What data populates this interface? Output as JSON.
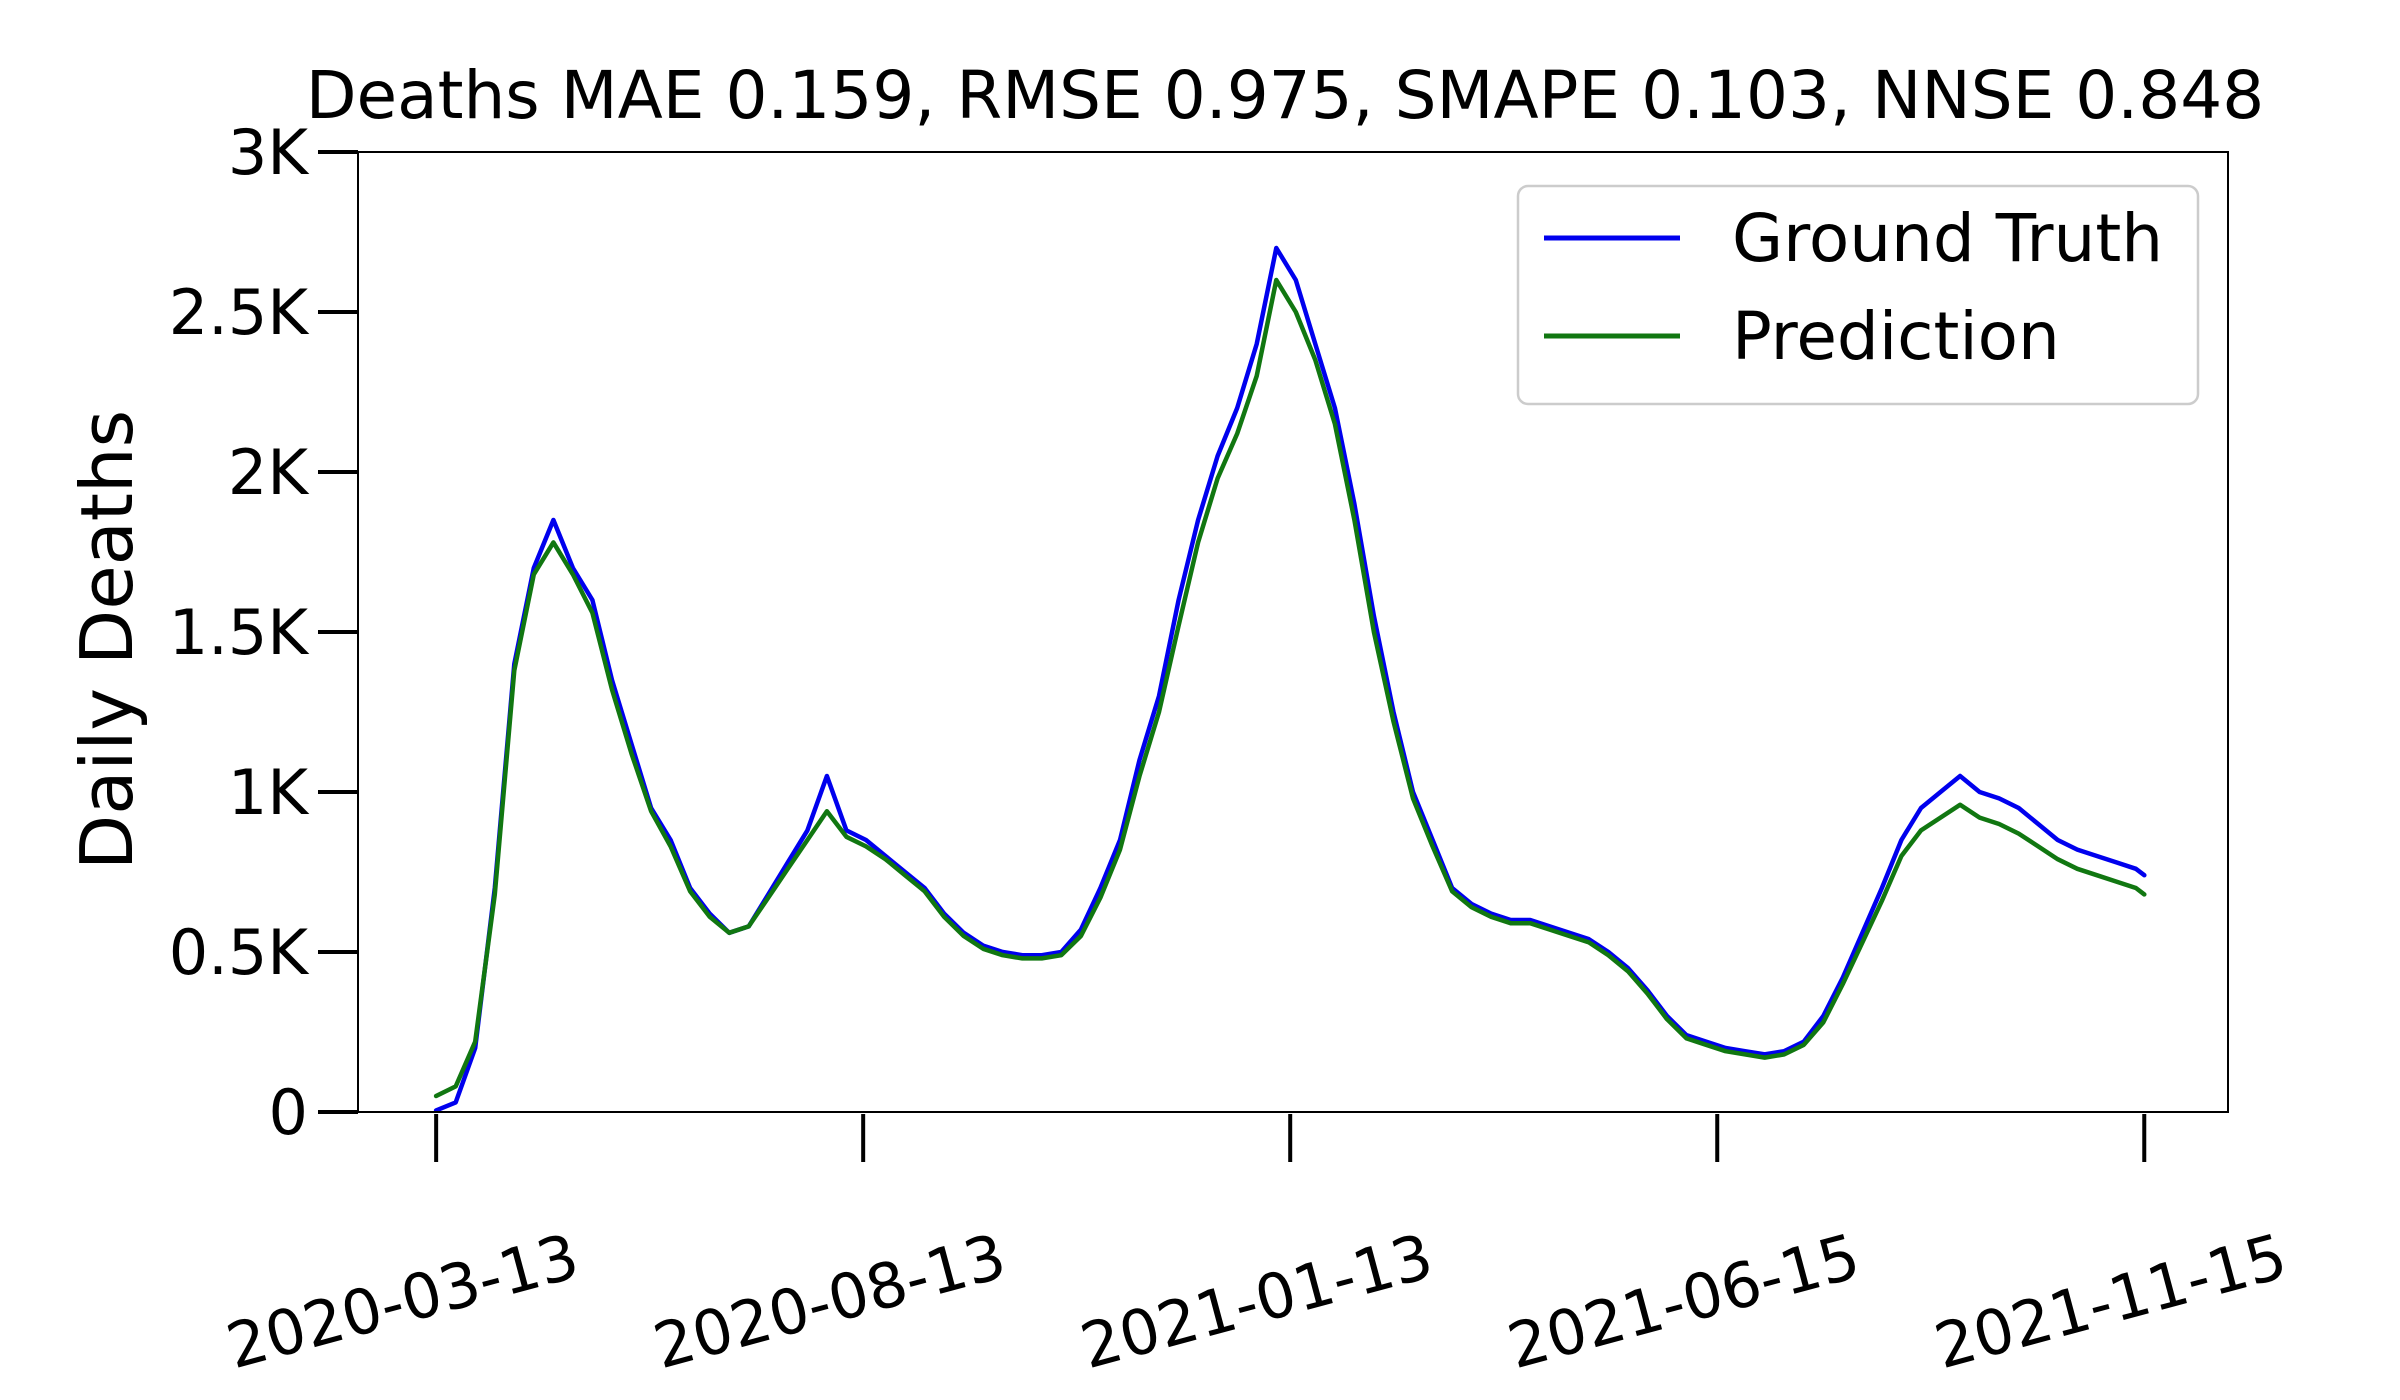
{
  "chart_data": {
    "type": "line",
    "title": "Deaths MAE 0.159, RMSE 0.975, SMAPE 0.103, NNSE 0.848",
    "xlabel": "",
    "ylabel": "Daily Deaths",
    "x_range": [
      "2020-02-14",
      "2021-12-15"
    ],
    "ylim": [
      0,
      3000
    ],
    "yticks": [
      0,
      500,
      1000,
      1500,
      2000,
      2500,
      3000
    ],
    "ytick_labels": [
      "0",
      "0.5K",
      "1K",
      "1.5K",
      "2K",
      "2.5K",
      "3K"
    ],
    "xticks": [
      "2020-03-13",
      "2020-08-13",
      "2021-01-13",
      "2021-06-15",
      "2021-11-15"
    ],
    "xtick_labels": [
      "2020-03-13",
      "2020-08-13",
      "2021-01-13",
      "2021-06-15",
      "2021-11-15"
    ],
    "grid": false,
    "legend_position": "top-right",
    "series": [
      {
        "name": "Ground Truth",
        "color": "#0000ee",
        "points": [
          [
            "2020-03-13",
            5
          ],
          [
            "2020-03-20",
            30
          ],
          [
            "2020-03-27",
            200
          ],
          [
            "2020-04-03",
            700
          ],
          [
            "2020-04-10",
            1400
          ],
          [
            "2020-04-17",
            1700
          ],
          [
            "2020-04-24",
            1850
          ],
          [
            "2020-05-01",
            1700
          ],
          [
            "2020-05-08",
            1600
          ],
          [
            "2020-05-15",
            1350
          ],
          [
            "2020-05-22",
            1150
          ],
          [
            "2020-05-29",
            950
          ],
          [
            "2020-06-05",
            850
          ],
          [
            "2020-06-12",
            700
          ],
          [
            "2020-06-19",
            620
          ],
          [
            "2020-06-26",
            560
          ],
          [
            "2020-07-03",
            580
          ],
          [
            "2020-07-10",
            680
          ],
          [
            "2020-07-17",
            780
          ],
          [
            "2020-07-24",
            880
          ],
          [
            "2020-07-31",
            1050
          ],
          [
            "2020-08-07",
            880
          ],
          [
            "2020-08-14",
            850
          ],
          [
            "2020-08-21",
            800
          ],
          [
            "2020-08-28",
            750
          ],
          [
            "2020-09-04",
            700
          ],
          [
            "2020-09-11",
            620
          ],
          [
            "2020-09-18",
            560
          ],
          [
            "2020-09-25",
            520
          ],
          [
            "2020-10-02",
            500
          ],
          [
            "2020-10-09",
            490
          ],
          [
            "2020-10-16",
            490
          ],
          [
            "2020-10-23",
            500
          ],
          [
            "2020-10-30",
            570
          ],
          [
            "2020-11-06",
            700
          ],
          [
            "2020-11-13",
            850
          ],
          [
            "2020-11-20",
            1100
          ],
          [
            "2020-11-27",
            1300
          ],
          [
            "2020-12-04",
            1600
          ],
          [
            "2020-12-11",
            1850
          ],
          [
            "2020-12-18",
            2050
          ],
          [
            "2020-12-25",
            2200
          ],
          [
            "2021-01-01",
            2400
          ],
          [
            "2021-01-08",
            2700
          ],
          [
            "2021-01-15",
            2600
          ],
          [
            "2021-01-22",
            2400
          ],
          [
            "2021-01-29",
            2200
          ],
          [
            "2021-02-05",
            1900
          ],
          [
            "2021-02-12",
            1550
          ],
          [
            "2021-02-19",
            1250
          ],
          [
            "2021-02-26",
            1000
          ],
          [
            "2021-03-05",
            850
          ],
          [
            "2021-03-12",
            700
          ],
          [
            "2021-03-19",
            650
          ],
          [
            "2021-03-26",
            620
          ],
          [
            "2021-04-02",
            600
          ],
          [
            "2021-04-09",
            600
          ],
          [
            "2021-04-16",
            580
          ],
          [
            "2021-04-23",
            560
          ],
          [
            "2021-04-30",
            540
          ],
          [
            "2021-05-07",
            500
          ],
          [
            "2021-05-14",
            450
          ],
          [
            "2021-05-21",
            380
          ],
          [
            "2021-05-28",
            300
          ],
          [
            "2021-06-04",
            240
          ],
          [
            "2021-06-11",
            220
          ],
          [
            "2021-06-18",
            200
          ],
          [
            "2021-06-25",
            190
          ],
          [
            "2021-07-02",
            180
          ],
          [
            "2021-07-09",
            190
          ],
          [
            "2021-07-16",
            220
          ],
          [
            "2021-07-23",
            300
          ],
          [
            "2021-07-30",
            420
          ],
          [
            "2021-08-06",
            560
          ],
          [
            "2021-08-13",
            700
          ],
          [
            "2021-08-20",
            850
          ],
          [
            "2021-08-27",
            950
          ],
          [
            "2021-09-03",
            1000
          ],
          [
            "2021-09-10",
            1050
          ],
          [
            "2021-09-17",
            1000
          ],
          [
            "2021-09-24",
            980
          ],
          [
            "2021-10-01",
            950
          ],
          [
            "2021-10-08",
            900
          ],
          [
            "2021-10-15",
            850
          ],
          [
            "2021-10-22",
            820
          ],
          [
            "2021-10-29",
            800
          ],
          [
            "2021-11-05",
            780
          ],
          [
            "2021-11-12",
            760
          ],
          [
            "2021-11-15",
            740
          ]
        ]
      },
      {
        "name": "Prediction",
        "color": "#117711",
        "points": [
          [
            "2020-03-13",
            50
          ],
          [
            "2020-03-20",
            80
          ],
          [
            "2020-03-27",
            220
          ],
          [
            "2020-04-03",
            680
          ],
          [
            "2020-04-10",
            1380
          ],
          [
            "2020-04-17",
            1680
          ],
          [
            "2020-04-24",
            1780
          ],
          [
            "2020-05-01",
            1680
          ],
          [
            "2020-05-08",
            1560
          ],
          [
            "2020-05-15",
            1320
          ],
          [
            "2020-05-22",
            1120
          ],
          [
            "2020-05-29",
            940
          ],
          [
            "2020-06-05",
            830
          ],
          [
            "2020-06-12",
            690
          ],
          [
            "2020-06-19",
            610
          ],
          [
            "2020-06-26",
            560
          ],
          [
            "2020-07-03",
            580
          ],
          [
            "2020-07-10",
            670
          ],
          [
            "2020-07-17",
            760
          ],
          [
            "2020-07-24",
            850
          ],
          [
            "2020-07-31",
            940
          ],
          [
            "2020-08-07",
            860
          ],
          [
            "2020-08-14",
            830
          ],
          [
            "2020-08-21",
            790
          ],
          [
            "2020-08-28",
            740
          ],
          [
            "2020-09-04",
            690
          ],
          [
            "2020-09-11",
            610
          ],
          [
            "2020-09-18",
            550
          ],
          [
            "2020-09-25",
            510
          ],
          [
            "2020-10-02",
            490
          ],
          [
            "2020-10-09",
            480
          ],
          [
            "2020-10-16",
            480
          ],
          [
            "2020-10-23",
            490
          ],
          [
            "2020-10-30",
            550
          ],
          [
            "2020-11-06",
            670
          ],
          [
            "2020-11-13",
            820
          ],
          [
            "2020-11-20",
            1050
          ],
          [
            "2020-11-27",
            1250
          ],
          [
            "2020-12-04",
            1520
          ],
          [
            "2020-12-11",
            1780
          ],
          [
            "2020-12-18",
            1980
          ],
          [
            "2020-12-25",
            2120
          ],
          [
            "2021-01-01",
            2300
          ],
          [
            "2021-01-08",
            2600
          ],
          [
            "2021-01-15",
            2500
          ],
          [
            "2021-01-22",
            2350
          ],
          [
            "2021-01-29",
            2150
          ],
          [
            "2021-02-05",
            1850
          ],
          [
            "2021-02-12",
            1500
          ],
          [
            "2021-02-19",
            1220
          ],
          [
            "2021-02-26",
            980
          ],
          [
            "2021-03-05",
            830
          ],
          [
            "2021-03-12",
            690
          ],
          [
            "2021-03-19",
            640
          ],
          [
            "2021-03-26",
            610
          ],
          [
            "2021-04-02",
            590
          ],
          [
            "2021-04-09",
            590
          ],
          [
            "2021-04-16",
            570
          ],
          [
            "2021-04-23",
            550
          ],
          [
            "2021-04-30",
            530
          ],
          [
            "2021-05-07",
            490
          ],
          [
            "2021-05-14",
            440
          ],
          [
            "2021-05-21",
            370
          ],
          [
            "2021-05-28",
            290
          ],
          [
            "2021-06-04",
            230
          ],
          [
            "2021-06-11",
            210
          ],
          [
            "2021-06-18",
            190
          ],
          [
            "2021-06-25",
            180
          ],
          [
            "2021-07-02",
            170
          ],
          [
            "2021-07-09",
            180
          ],
          [
            "2021-07-16",
            210
          ],
          [
            "2021-07-23",
            280
          ],
          [
            "2021-07-30",
            400
          ],
          [
            "2021-08-06",
            530
          ],
          [
            "2021-08-13",
            660
          ],
          [
            "2021-08-20",
            800
          ],
          [
            "2021-08-27",
            880
          ],
          [
            "2021-09-03",
            920
          ],
          [
            "2021-09-10",
            960
          ],
          [
            "2021-09-17",
            920
          ],
          [
            "2021-09-24",
            900
          ],
          [
            "2021-10-01",
            870
          ],
          [
            "2021-10-08",
            830
          ],
          [
            "2021-10-15",
            790
          ],
          [
            "2021-10-22",
            760
          ],
          [
            "2021-10-29",
            740
          ],
          [
            "2021-11-05",
            720
          ],
          [
            "2021-11-12",
            700
          ],
          [
            "2021-11-15",
            680
          ]
        ]
      }
    ]
  }
}
